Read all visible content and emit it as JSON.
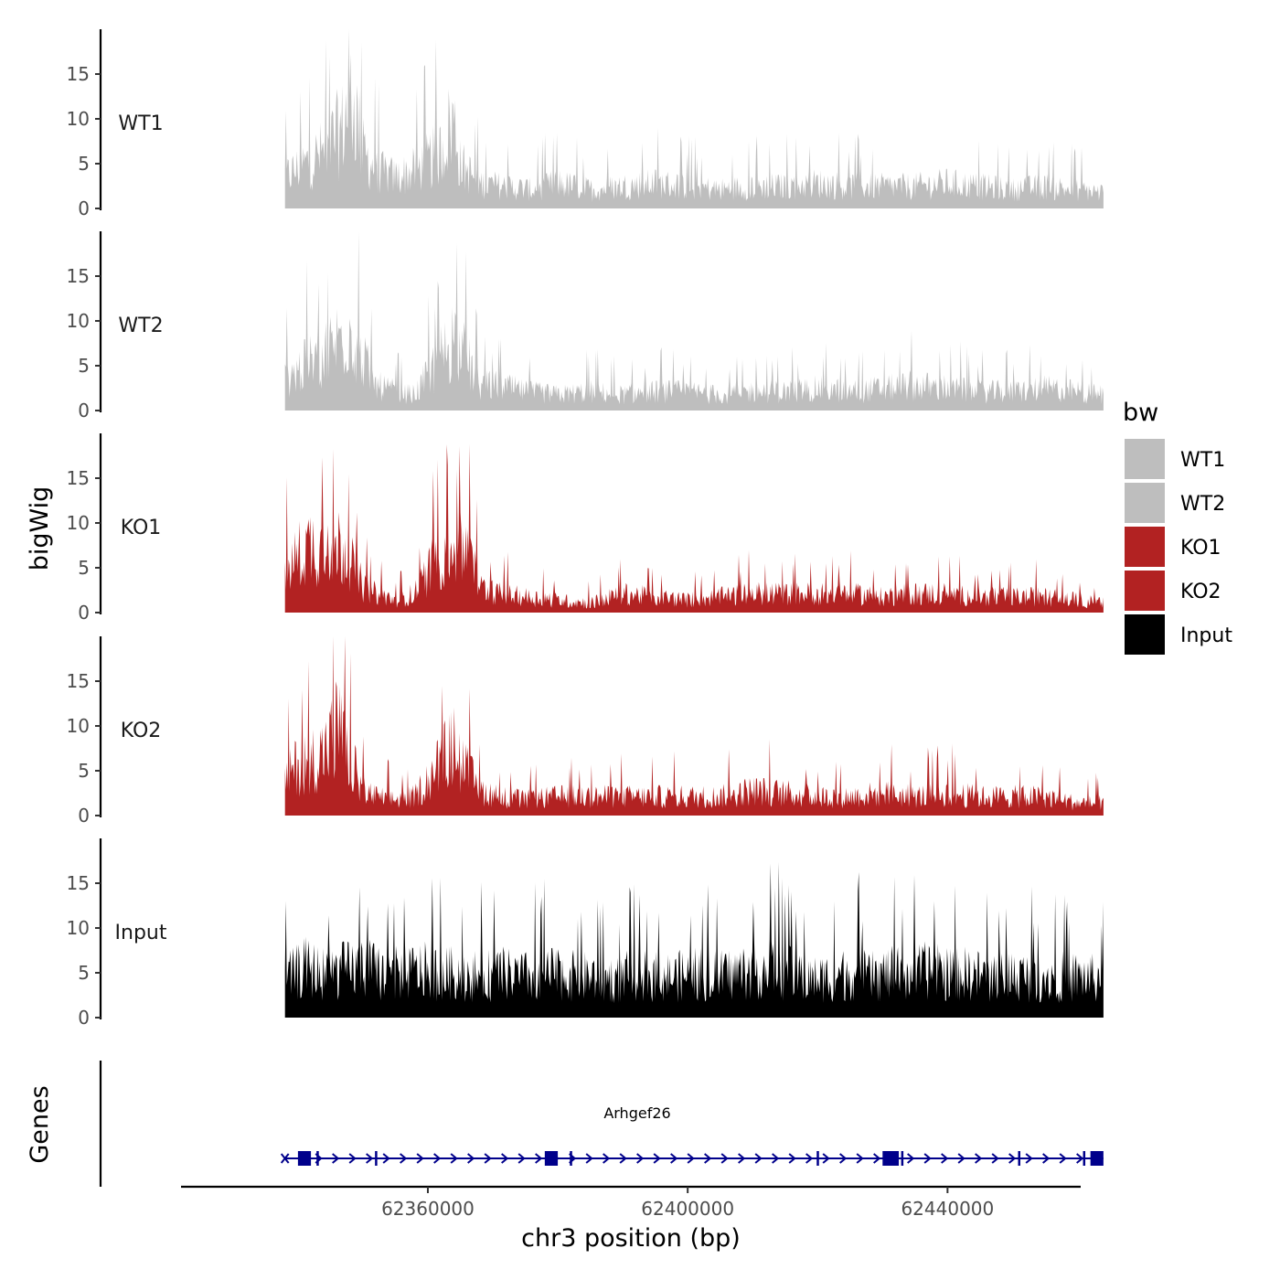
{
  "chart_data": {
    "type": "area",
    "title": "",
    "ylabel": "bigWig",
    "xlabel": "chr3 position (bp)",
    "x_range": [
      62338000,
      62464000
    ],
    "xlim": [
      62322000,
      62460500
    ],
    "x_ticks": [
      62360000,
      62400000,
      62440000
    ],
    "x_tick_labels": [
      "62360000",
      "62400000",
      "62440000"
    ],
    "ylim": [
      0,
      20
    ],
    "y_ticks": [
      0,
      5,
      10,
      15
    ],
    "y_tick_labels": [
      "0",
      "5",
      "10",
      "15"
    ],
    "legend": {
      "title": "bw",
      "placement": "right",
      "entries": [
        {
          "name": "WT1",
          "color": "#bebebe"
        },
        {
          "name": "WT2",
          "color": "#bebebe"
        },
        {
          "name": "KO1",
          "color": "#b22222"
        },
        {
          "name": "KO2",
          "color": "#b22222"
        },
        {
          "name": "Input",
          "color": "#000000"
        }
      ]
    },
    "series": [
      {
        "name": "WT1",
        "color": "#bebebe",
        "x": [
          62338000,
          62341000,
          62344000,
          62347000,
          62348000,
          62349000,
          62350000,
          62352000,
          62355000,
          62358000,
          62362000,
          62363000,
          62364000,
          62365000,
          62368000,
          62372000,
          62376000,
          62380000,
          62385000,
          62390000,
          62395000,
          62400000,
          62405000,
          62410000,
          62415000,
          62420000,
          62425000,
          62430000,
          62435000,
          62440000,
          62445000,
          62450000,
          62455000,
          62460000,
          62464000
        ],
        "values": [
          5,
          7,
          9,
          13,
          18,
          15,
          9,
          6,
          5,
          6,
          9,
          12,
          14,
          7,
          4,
          3.5,
          3,
          4,
          3,
          3.5,
          4,
          3.5,
          3,
          3.5,
          3.5,
          4,
          3.5,
          3.5,
          3.5,
          4,
          3.5,
          3,
          3.5,
          3,
          2.5
        ]
      },
      {
        "name": "WT2",
        "color": "#bebebe",
        "x": [
          62338000,
          62341000,
          62344000,
          62347000,
          62348000,
          62350000,
          62352000,
          62355000,
          62358000,
          62361000,
          62363000,
          62364000,
          62366000,
          62368000,
          62371000,
          62375000,
          62380000,
          62385000,
          62390000,
          62395000,
          62400000,
          62405000,
          62410000,
          62415000,
          62420000,
          62425000,
          62430000,
          62435000,
          62440000,
          62445000,
          62450000,
          62455000,
          62460000,
          62464000
        ],
        "values": [
          5,
          7,
          9,
          12,
          13,
          8,
          4,
          3,
          2.5,
          7,
          10,
          12,
          8,
          4,
          4,
          3,
          2.5,
          3,
          2.5,
          3,
          3,
          2.5,
          3,
          3,
          3.5,
          3,
          3.5,
          4,
          3.5,
          3,
          3,
          3.5,
          3,
          2.5
        ]
      },
      {
        "name": "KO1",
        "color": "#b22222",
        "x": [
          62338000,
          62340000,
          62342000,
          62344000,
          62346000,
          62348000,
          62350000,
          62352000,
          62355000,
          62358000,
          62361000,
          62363000,
          62364000,
          62366000,
          62368000,
          62371000,
          62375000,
          62380000,
          62385000,
          62390000,
          62395000,
          62400000,
          62405000,
          62410000,
          62415000,
          62420000,
          62425000,
          62430000,
          62435000,
          62440000,
          62445000,
          62450000,
          62455000,
          62460000,
          62464000
        ],
        "values": [
          6,
          9,
          11,
          10,
          11,
          9,
          4,
          3,
          2,
          3,
          8,
          10,
          9,
          11,
          4,
          3,
          2.5,
          2,
          1.5,
          3,
          2.5,
          2,
          2.5,
          3,
          3,
          3,
          3,
          2.5,
          3,
          3,
          2.5,
          2.5,
          2.5,
          2,
          1.5
        ]
      },
      {
        "name": "KO2",
        "color": "#b22222",
        "x": [
          62338000,
          62340000,
          62342000,
          62344000,
          62346000,
          62348000,
          62350000,
          62352000,
          62355000,
          62358000,
          62361000,
          62363000,
          62364000,
          62366000,
          62368000,
          62371000,
          62375000,
          62380000,
          62385000,
          62390000,
          62395000,
          62400000,
          62405000,
          62410000,
          62415000,
          62420000,
          62425000,
          62430000,
          62435000,
          62440000,
          62445000,
          62450000,
          62455000,
          62460000,
          62464000
        ],
        "values": [
          6,
          8,
          9,
          10,
          14,
          9,
          4,
          3,
          2.5,
          3,
          7,
          10,
          11,
          7,
          4,
          3,
          2.5,
          3,
          3,
          3,
          3,
          3,
          3,
          4,
          3.5,
          3,
          3,
          3.5,
          3,
          3.5,
          3,
          3,
          3,
          2,
          2
        ]
      },
      {
        "name": "Input",
        "color": "#000000",
        "x": [
          62338000,
          62341000,
          62344000,
          62347000,
          62350000,
          62353000,
          62356000,
          62359000,
          62362000,
          62365000,
          62368000,
          62371000,
          62374000,
          62377000,
          62380000,
          62383000,
          62386000,
          62389000,
          62392000,
          62395000,
          62398000,
          62401000,
          62404000,
          62407000,
          62410000,
          62413000,
          62416000,
          62419000,
          62422000,
          62425000,
          62428000,
          62431000,
          62434000,
          62437000,
          62440000,
          62443000,
          62446000,
          62449000,
          62452000,
          62455000,
          62458000,
          62461000,
          62464000
        ],
        "values": [
          6,
          8,
          7,
          7.5,
          8,
          7,
          7,
          7.5,
          7,
          7,
          6.5,
          7,
          6.5,
          6.5,
          7,
          6.5,
          6.5,
          6,
          7,
          6.5,
          6.5,
          7,
          6.5,
          7,
          7.5,
          8,
          7,
          6,
          6.5,
          7,
          6.5,
          7,
          7,
          7.5,
          7,
          7,
          6.5,
          7,
          6.5,
          6.5,
          6.5,
          6.5,
          6
        ]
      }
    ],
    "gene_track": {
      "label": "Genes",
      "gene_name": "Arhgef26",
      "color": "#00008b",
      "strand": "+",
      "start": 62338000,
      "end": 62464000,
      "exons": [
        {
          "start": 62340000,
          "end": 62342000
        },
        {
          "start": 62378000,
          "end": 62380000
        },
        {
          "start": 62430000,
          "end": 62432500
        },
        {
          "start": 62462000,
          "end": 62464000
        }
      ],
      "minor_exons": [
        62343000,
        62352000,
        62382000,
        62420000,
        62433000,
        62451000,
        62461000
      ]
    }
  }
}
